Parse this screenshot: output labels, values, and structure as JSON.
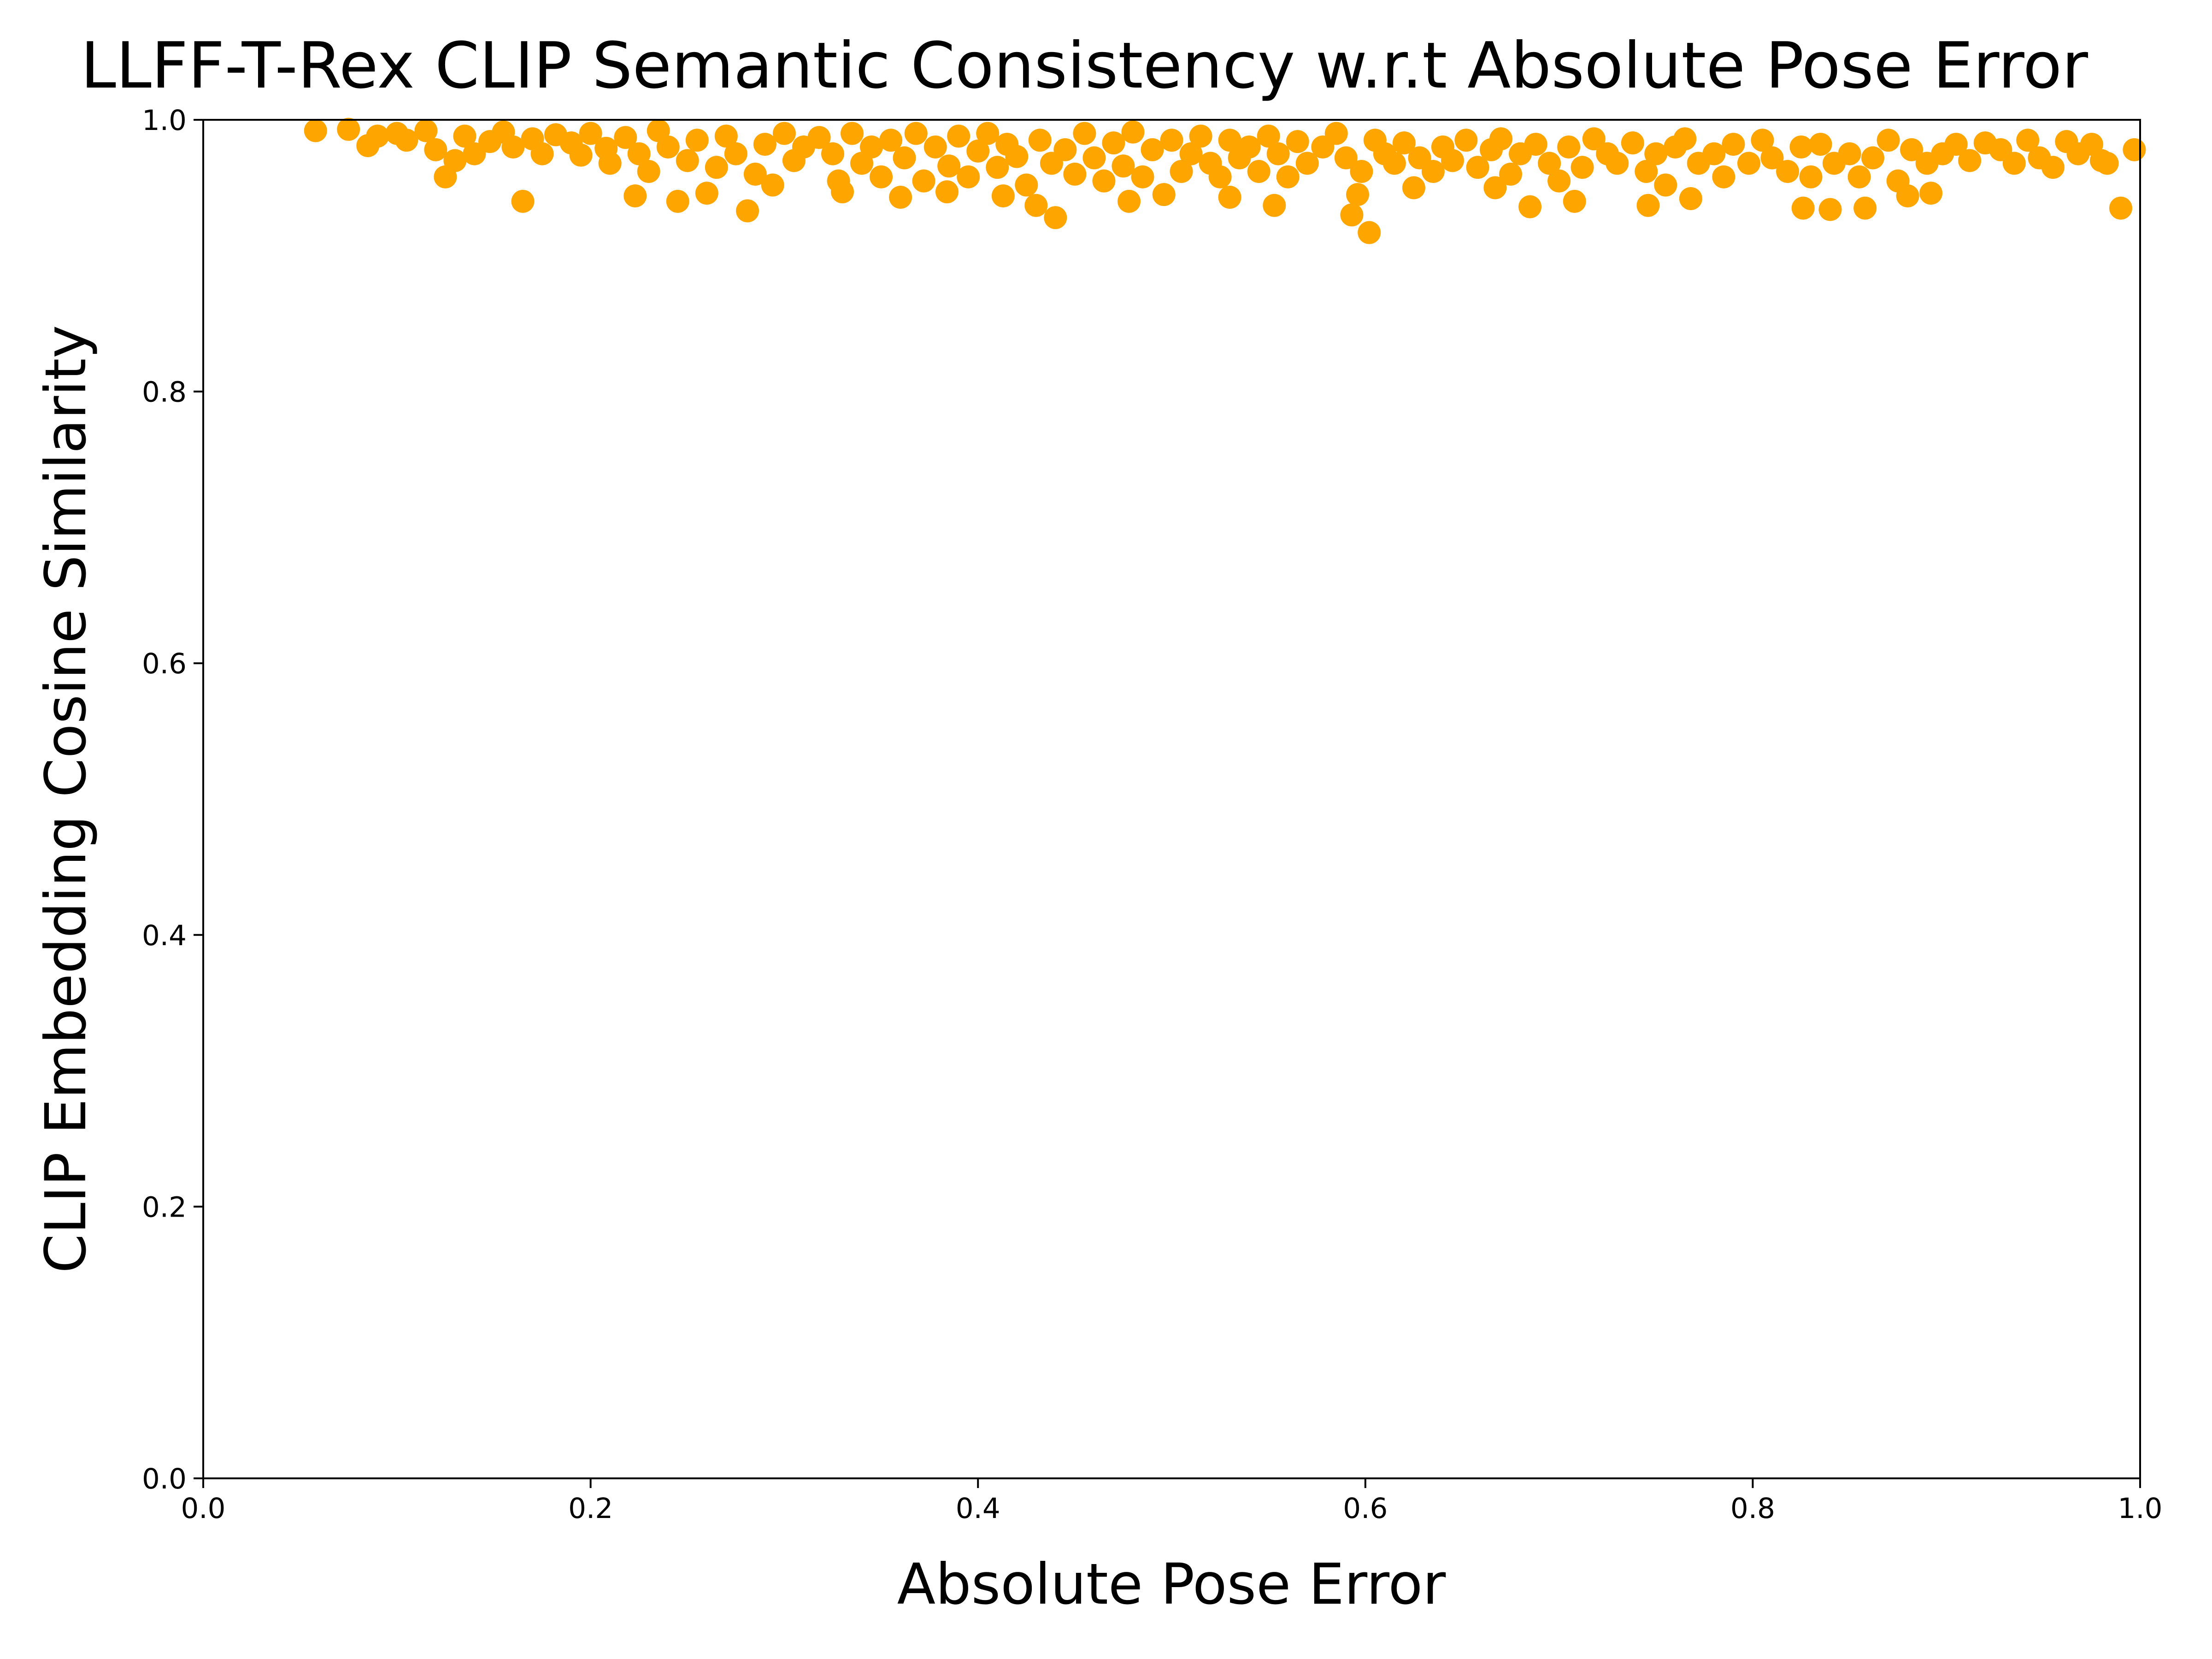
{
  "chart_data": {
    "type": "scatter",
    "title": "LLFF-T-Rex CLIP Semantic Consistency w.r.t Absolute Pose Error",
    "x_label": "Absolute Pose Error",
    "y_label": "CLIP Embedding Cosine Similarity",
    "color": "#ffa500",
    "xlim": [
      0,
      1
    ],
    "ylim": [
      0,
      1
    ],
    "xticks": [
      {
        "value": 0,
        "label": "0.0"
      },
      0.2,
      0.4,
      0.6,
      0.8,
      {
        "value": 1,
        "label": "1.0"
      }
    ],
    "yticks": [
      {
        "value": 0,
        "label": "0.0"
      },
      0.2,
      0.4,
      0.6,
      0.8,
      {
        "value": 1,
        "label": "1.0"
      }
    ],
    "x": [
      0.058,
      0.165,
      0.125,
      0.223,
      0.245,
      0.26,
      0.281,
      0.294,
      0.33,
      0.36,
      0.384,
      0.413,
      0.43,
      0.44,
      0.478,
      0.496,
      0.53,
      0.553,
      0.593,
      0.602,
      0.596,
      0.625,
      0.667,
      0.685,
      0.708,
      0.746,
      0.768,
      0.826,
      0.84,
      0.858,
      0.88,
      0.892,
      0.99,
      0.997,
      0.983,
      0.075,
      0.085,
      0.09,
      0.1,
      0.105,
      0.115,
      0.12,
      0.13,
      0.135,
      0.14,
      0.148,
      0.155,
      0.16,
      0.17,
      0.175,
      0.182,
      0.19,
      0.195,
      0.2,
      0.208,
      0.21,
      0.218,
      0.225,
      0.23,
      0.235,
      0.24,
      0.25,
      0.255,
      0.265,
      0.27,
      0.275,
      0.285,
      0.29,
      0.3,
      0.305,
      0.31,
      0.318,
      0.325,
      0.328,
      0.335,
      0.34,
      0.345,
      0.35,
      0.355,
      0.362,
      0.368,
      0.372,
      0.378,
      0.385,
      0.39,
      0.395,
      0.4,
      0.405,
      0.41,
      0.415,
      0.42,
      0.425,
      0.432,
      0.438,
      0.445,
      0.45,
      0.455,
      0.46,
      0.465,
      0.47,
      0.475,
      0.48,
      0.485,
      0.49,
      0.5,
      0.505,
      0.51,
      0.515,
      0.52,
      0.525,
      0.53,
      0.535,
      0.54,
      0.545,
      0.55,
      0.555,
      0.56,
      0.565,
      0.57,
      0.578,
      0.585,
      0.59,
      0.598,
      0.605,
      0.61,
      0.615,
      0.62,
      0.628,
      0.635,
      0.64,
      0.645,
      0.652,
      0.658,
      0.665,
      0.67,
      0.675,
      0.68,
      0.688,
      0.695,
      0.7,
      0.705,
      0.712,
      0.718,
      0.725,
      0.73,
      0.738,
      0.745,
      0.75,
      0.755,
      0.76,
      0.765,
      0.772,
      0.78,
      0.785,
      0.79,
      0.798,
      0.805,
      0.81,
      0.818,
      0.825,
      0.83,
      0.835,
      0.842,
      0.85,
      0.855,
      0.862,
      0.87,
      0.875,
      0.882,
      0.89,
      0.898,
      0.905,
      0.912,
      0.92,
      0.928,
      0.935,
      0.942,
      0.948,
      0.955,
      0.962,
      0.968,
      0.975,
      0.98
    ],
    "values": [
      0.992,
      0.94,
      0.958,
      0.944,
      0.94,
      0.946,
      0.933,
      0.952,
      0.947,
      0.943,
      0.947,
      0.944,
      0.937,
      0.928,
      0.94,
      0.945,
      0.943,
      0.937,
      0.93,
      0.917,
      0.945,
      0.95,
      0.95,
      0.936,
      0.94,
      0.937,
      0.942,
      0.935,
      0.934,
      0.935,
      0.944,
      0.946,
      0.935,
      0.978,
      0.968,
      0.993,
      0.981,
      0.988,
      0.99,
      0.985,
      0.992,
      0.978,
      0.97,
      0.988,
      0.975,
      0.984,
      0.991,
      0.98,
      0.986,
      0.975,
      0.989,
      0.983,
      0.974,
      0.99,
      0.979,
      0.968,
      0.987,
      0.975,
      0.962,
      0.992,
      0.98,
      0.97,
      0.985,
      0.965,
      0.988,
      0.975,
      0.96,
      0.982,
      0.99,
      0.97,
      0.98,
      0.987,
      0.975,
      0.955,
      0.99,
      0.968,
      0.98,
      0.958,
      0.985,
      0.972,
      0.99,
      0.955,
      0.98,
      0.966,
      0.988,
      0.958,
      0.977,
      0.99,
      0.965,
      0.982,
      0.973,
      0.952,
      0.985,
      0.968,
      0.978,
      0.96,
      0.99,
      0.972,
      0.955,
      0.983,
      0.966,
      0.991,
      0.958,
      0.978,
      0.985,
      0.962,
      0.975,
      0.988,
      0.968,
      0.958,
      0.985,
      0.972,
      0.98,
      0.962,
      0.988,
      0.975,
      0.958,
      0.984,
      0.968,
      0.98,
      0.99,
      0.972,
      0.962,
      0.985,
      0.975,
      0.968,
      0.983,
      0.972,
      0.962,
      0.98,
      0.97,
      0.985,
      0.965,
      0.978,
      0.986,
      0.96,
      0.975,
      0.982,
      0.968,
      0.955,
      0.98,
      0.965,
      0.986,
      0.975,
      0.968,
      0.983,
      0.962,
      0.975,
      0.952,
      0.98,
      0.986,
      0.968,
      0.975,
      0.958,
      0.982,
      0.968,
      0.985,
      0.972,
      0.962,
      0.98,
      0.958,
      0.982,
      0.968,
      0.975,
      0.958,
      0.972,
      0.985,
      0.955,
      0.978,
      0.968,
      0.975,
      0.982,
      0.97,
      0.983,
      0.978,
      0.968,
      0.985,
      0.972,
      0.965,
      0.984,
      0.975,
      0.982,
      0.97
    ]
  }
}
